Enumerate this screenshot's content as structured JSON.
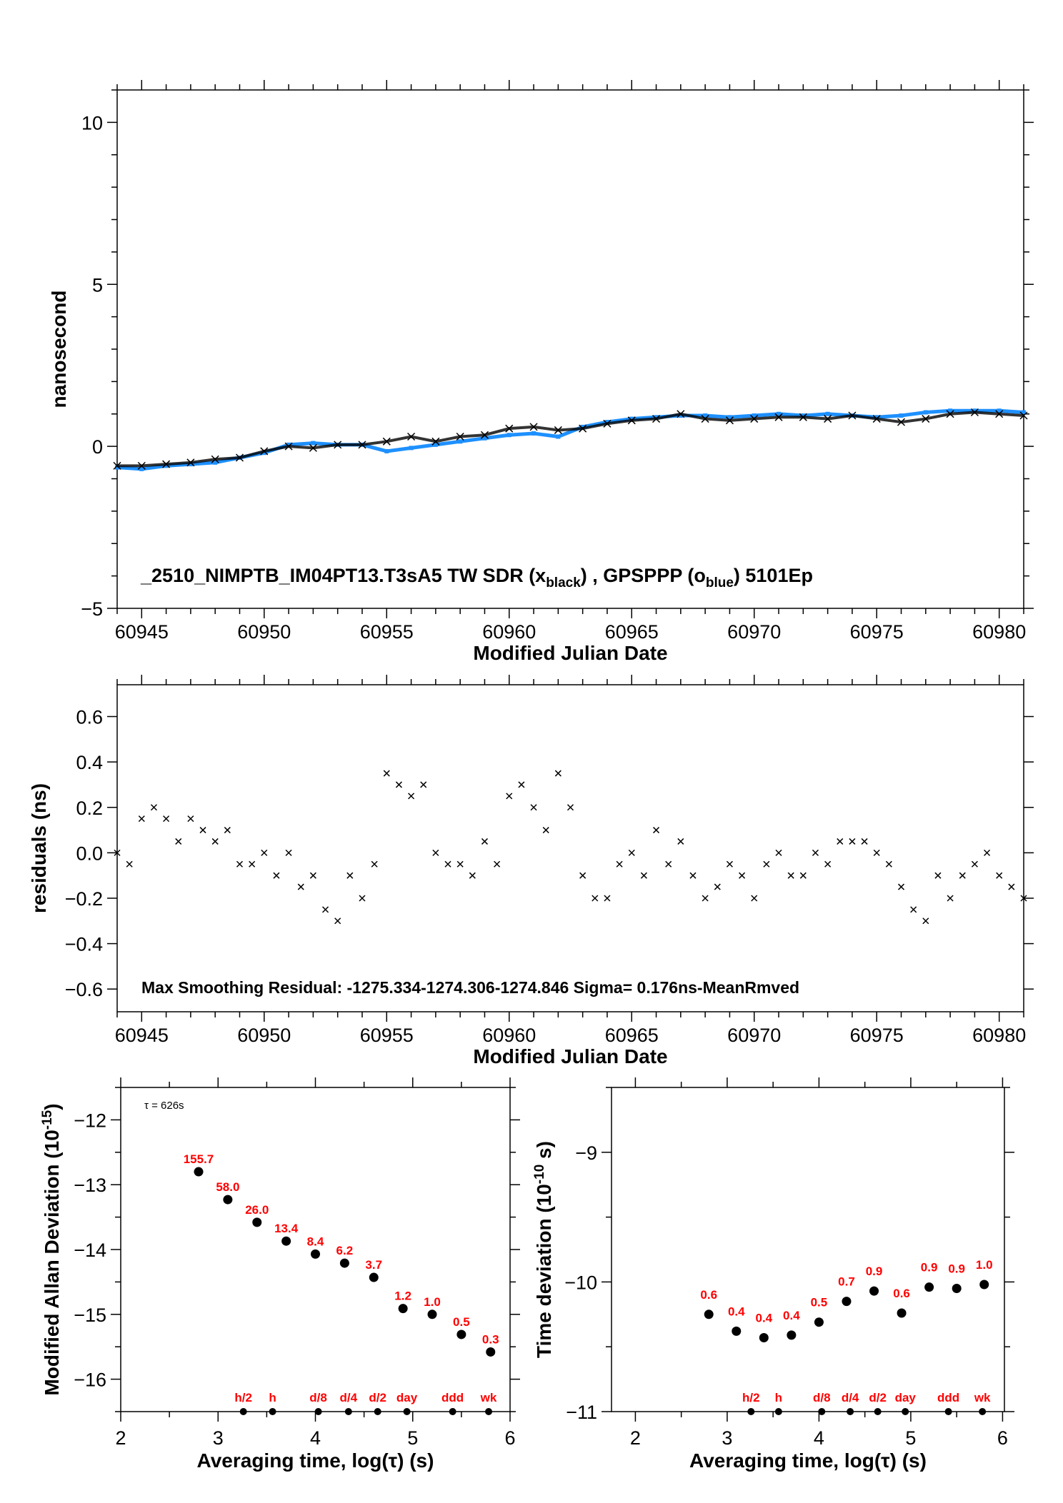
{
  "colors": {
    "black_series": "#000000",
    "blue_series": "#1e90ff",
    "labels": "#ff0000"
  },
  "chart_data": [
    {
      "type": "scatter",
      "xlabel": "Modified Julian Date",
      "ylabel": "nanosecond",
      "xlim": [
        60944,
        60981
      ],
      "ylim": [
        -5,
        11
      ],
      "xticks": [
        60945,
        60950,
        60955,
        60960,
        60965,
        60970,
        60975,
        60980
      ],
      "yticks": [
        -5,
        0,
        5,
        10
      ],
      "annotation": {
        "prefix": "_2510_NIMPTB_IM04PT13.T3sA5     TW SDR (x",
        "sub1": "black",
        "mid": ") ,  GPSPPP (o",
        "sub2": "blue",
        "suffix": ")  5101Ep"
      },
      "x": [
        60944,
        60945,
        60946,
        60947,
        60948,
        60949,
        60950,
        60951,
        60952,
        60953,
        60954,
        60955,
        60956,
        60957,
        60958,
        60959,
        60960,
        60961,
        60962,
        60963,
        60964,
        60965,
        60966,
        60967,
        60968,
        60969,
        60970,
        60971,
        60972,
        60973,
        60974,
        60975,
        60976,
        60977,
        60978,
        60979,
        60980,
        60981
      ],
      "series": [
        {
          "marker": "x",
          "color": "black",
          "values": [
            -0.6,
            -0.6,
            -0.55,
            -0.5,
            -0.4,
            -0.35,
            -0.15,
            0.0,
            -0.05,
            0.05,
            0.05,
            0.15,
            0.3,
            0.15,
            0.3,
            0.35,
            0.55,
            0.6,
            0.5,
            0.55,
            0.7,
            0.8,
            0.85,
            1.0,
            0.85,
            0.8,
            0.85,
            0.9,
            0.9,
            0.85,
            0.95,
            0.85,
            0.75,
            0.85,
            1.0,
            1.05,
            1.0,
            0.95
          ]
        },
        {
          "marker": "o",
          "color": "blue",
          "values": [
            -0.65,
            -0.7,
            -0.6,
            -0.55,
            -0.5,
            -0.35,
            -0.2,
            0.05,
            0.1,
            0.05,
            0.05,
            -0.15,
            -0.05,
            0.05,
            0.15,
            0.25,
            0.35,
            0.4,
            0.3,
            0.6,
            0.75,
            0.85,
            0.9,
            0.95,
            0.95,
            0.9,
            0.95,
            1.0,
            0.95,
            1.0,
            0.95,
            0.9,
            0.95,
            1.05,
            1.1,
            1.1,
            1.1,
            1.05
          ]
        }
      ]
    },
    {
      "type": "scatter",
      "xlabel": "Modified Julian Date",
      "ylabel": "residuals (ns)",
      "xlim": [
        60944,
        60981
      ],
      "ylim": [
        -0.7,
        0.74
      ],
      "xticks": [
        60945,
        60950,
        60955,
        60960,
        60965,
        60970,
        60975,
        60980
      ],
      "yticks": [
        -0.6,
        -0.4,
        -0.2,
        0.0,
        0.2,
        0.4,
        0.6
      ],
      "ytick_labels": [
        "−0.6",
        "−0.4",
        "−0.2",
        "0.0",
        "0.2",
        "0.4",
        "0.6"
      ],
      "annotation": "Max Smoothing Residual: -1275.334-1274.306-1274.846  Sigma= 0.176ns-MeanRmved",
      "x": [
        60944,
        60944.5,
        60945,
        60945.5,
        60946,
        60946.5,
        60947,
        60947.5,
        60948,
        60948.5,
        60949,
        60949.5,
        60950,
        60950.5,
        60951,
        60951.5,
        60952,
        60952.5,
        60953,
        60953.5,
        60954,
        60954.5,
        60955,
        60955.5,
        60956,
        60956.5,
        60957,
        60957.5,
        60958,
        60958.5,
        60959,
        60959.5,
        60960,
        60960.5,
        60961,
        60961.5,
        60962,
        60962.5,
        60963,
        60963.5,
        60964,
        60964.5,
        60965,
        60965.5,
        60966,
        60966.5,
        60967,
        60967.5,
        60968,
        60968.5,
        60969,
        60969.5,
        60970,
        60970.5,
        60971,
        60971.5,
        60972,
        60972.5,
        60973,
        60973.5,
        60974,
        60974.5,
        60975,
        60975.5,
        60976,
        60976.5,
        60977,
        60977.5,
        60978,
        60978.5,
        60979,
        60979.5,
        60980,
        60980.5,
        60981
      ],
      "values": [
        0.0,
        -0.05,
        0.15,
        0.2,
        0.15,
        0.05,
        0.15,
        0.1,
        0.05,
        0.1,
        -0.05,
        -0.05,
        0.0,
        -0.1,
        0.0,
        -0.15,
        -0.1,
        -0.25,
        -0.3,
        -0.1,
        -0.2,
        -0.05,
        0.35,
        0.3,
        0.25,
        0.3,
        0.0,
        -0.05,
        -0.05,
        -0.1,
        0.05,
        -0.05,
        0.25,
        0.3,
        0.2,
        0.1,
        0.35,
        0.2,
        -0.1,
        -0.2,
        -0.2,
        -0.05,
        0.0,
        -0.1,
        0.1,
        -0.05,
        0.05,
        -0.1,
        -0.2,
        -0.15,
        -0.05,
        -0.1,
        -0.2,
        -0.05,
        0.0,
        -0.1,
        -0.1,
        0.0,
        -0.05,
        0.05,
        0.05,
        0.05,
        0.0,
        -0.05,
        -0.15,
        -0.25,
        -0.3,
        -0.1,
        -0.2,
        -0.1,
        -0.05,
        0.0,
        -0.1,
        -0.15,
        -0.2
      ]
    },
    {
      "type": "scatter",
      "xlabel": "Averaging time, log(τ) (s)",
      "ylabel": "Modified Allan Deviation (10",
      "ylabel_sup": "-15",
      "ylabel_end": ")",
      "tau_note": "τ = 626s",
      "xlim": [
        2,
        6
      ],
      "ylim": [
        -16.5,
        -11.5
      ],
      "xticks": [
        2,
        3,
        4,
        5,
        6
      ],
      "yticks": [
        -16,
        -15,
        -14,
        -13,
        -12
      ],
      "x": [
        2.8,
        3.1,
        3.4,
        3.7,
        4.0,
        4.3,
        4.6,
        4.9,
        5.2,
        5.5,
        5.8
      ],
      "y": [
        -12.8,
        -13.23,
        -13.58,
        -13.87,
        -14.07,
        -14.21,
        -14.43,
        -14.91,
        -15.0,
        -15.31,
        -15.58
      ],
      "point_labels": [
        "155.7",
        "58.0",
        "26.0",
        "13.4",
        "8.4",
        "6.2",
        "3.7",
        "1.2",
        "1.0",
        "0.5",
        "0.3"
      ],
      "markers": [
        {
          "label": "h/2",
          "x": 3.26
        },
        {
          "label": "h",
          "x": 3.56
        },
        {
          "label": "d/8",
          "x": 4.03
        },
        {
          "label": "d/4",
          "x": 4.34
        },
        {
          "label": "d/2",
          "x": 4.64
        },
        {
          "label": "day",
          "x": 4.94
        },
        {
          "label": "ddd",
          "x": 5.41
        },
        {
          "label": "wk",
          "x": 5.78
        }
      ]
    },
    {
      "type": "scatter",
      "xlabel": "Averaging time, log(τ) (s)",
      "ylabel": "Time deviation (10",
      "ylabel_sup": "-10",
      "ylabel_end": " s)",
      "xlim": [
        1.74,
        6.02
      ],
      "ylim": [
        -11,
        -8.5
      ],
      "xticks": [
        2,
        3,
        4,
        5,
        6
      ],
      "yticks": [
        -11,
        -10,
        -9
      ],
      "x": [
        2.8,
        3.1,
        3.4,
        3.7,
        4.0,
        4.3,
        4.6,
        4.9,
        5.2,
        5.5,
        5.8
      ],
      "y": [
        -10.25,
        -10.38,
        -10.43,
        -10.41,
        -10.31,
        -10.15,
        -10.07,
        -10.24,
        -10.04,
        -10.05,
        -10.02
      ],
      "point_labels": [
        "0.6",
        "0.4",
        "0.4",
        "0.4",
        "0.5",
        "0.7",
        "0.9",
        "0.6",
        "0.9",
        "0.9",
        "1.0"
      ],
      "markers": [
        {
          "label": "h/2",
          "x": 3.26
        },
        {
          "label": "h",
          "x": 3.56
        },
        {
          "label": "d/8",
          "x": 4.03
        },
        {
          "label": "d/4",
          "x": 4.34
        },
        {
          "label": "d/2",
          "x": 4.64
        },
        {
          "label": "day",
          "x": 4.94
        },
        {
          "label": "ddd",
          "x": 5.41
        },
        {
          "label": "wk",
          "x": 5.78
        }
      ]
    }
  ]
}
